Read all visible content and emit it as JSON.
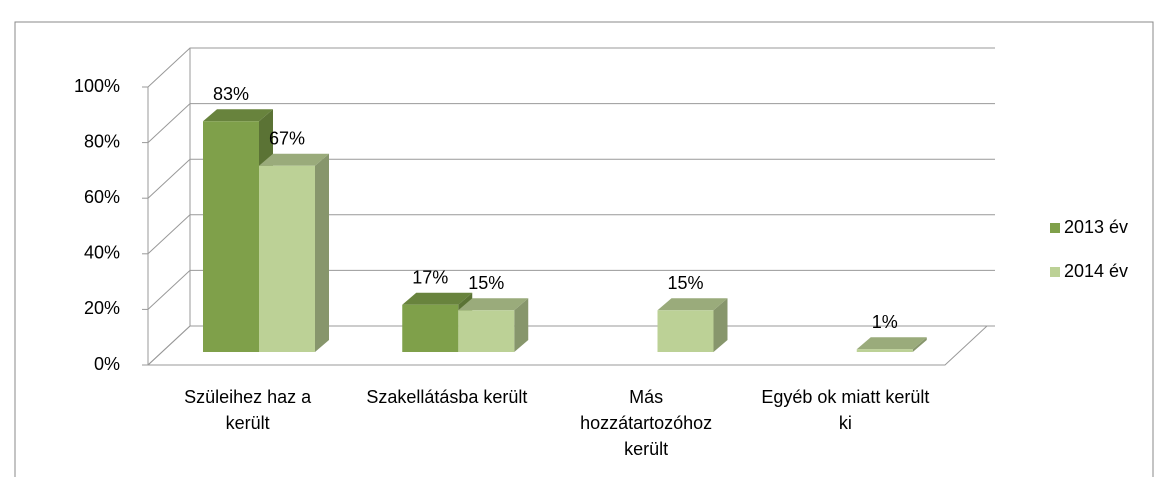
{
  "chart_data": {
    "type": "bar3d",
    "categories": [
      "Szüleihez haz a került",
      "Szakellátásba került",
      "Más hozzátartozóhoz került",
      "Egyéb ok miatt került ki"
    ],
    "series": [
      {
        "name": "2013 év",
        "color": "#7fa04a",
        "values": [
          83,
          17,
          null,
          null
        ],
        "value_labels": [
          "83%",
          "17%",
          null,
          null
        ]
      },
      {
        "name": "2014 év",
        "color": "#bcd196",
        "values": [
          67,
          15,
          15,
          1
        ],
        "value_labels": [
          "67%",
          "15%",
          "15%",
          "1%"
        ]
      }
    ],
    "ylim": [
      0,
      100
    ],
    "yticks": [
      {
        "value": 0,
        "label": "0%"
      },
      {
        "value": 20,
        "label": "20%"
      },
      {
        "value": 40,
        "label": "40%"
      },
      {
        "value": 60,
        "label": "60%"
      },
      {
        "value": 80,
        "label": "80%"
      },
      {
        "value": 100,
        "label": "100%"
      }
    ],
    "grid": true,
    "legend": "right"
  }
}
